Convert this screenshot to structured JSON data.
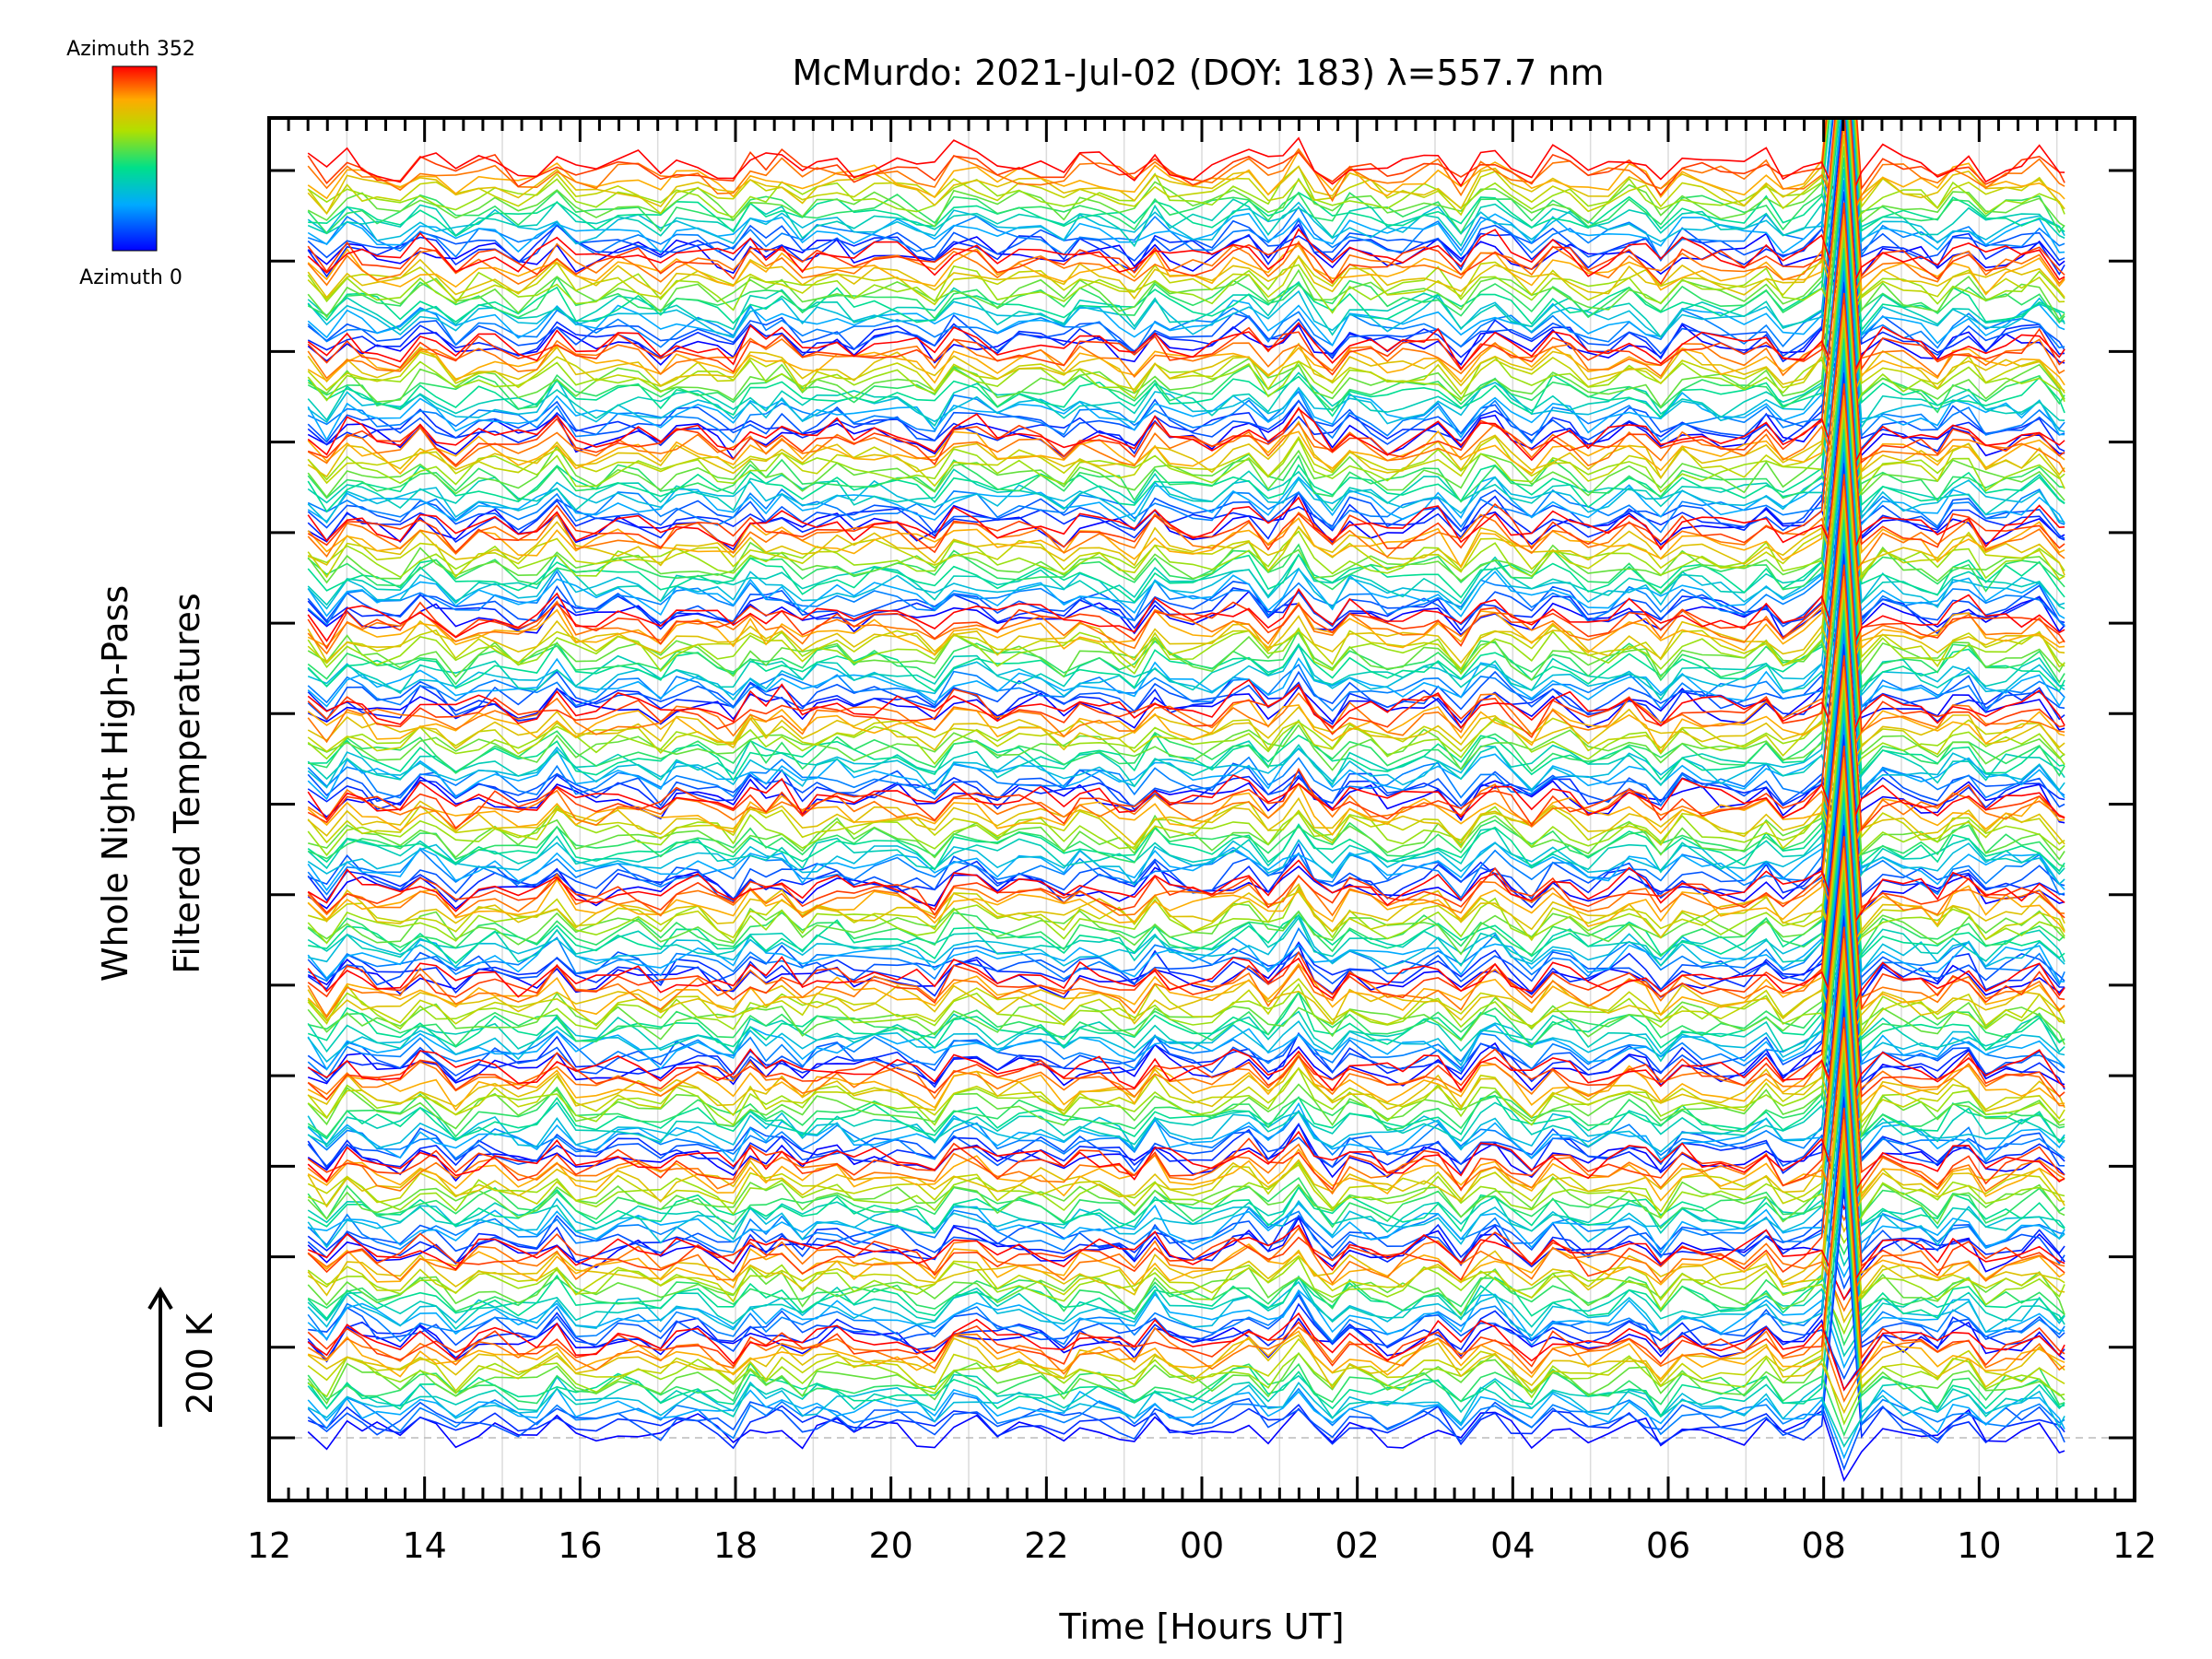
{
  "chart_data": {
    "type": "line",
    "title": "McMurdo: 2021-Jul-02 (DOY: 183) λ=557.7 nm",
    "xlabel": "Time [Hours UT]",
    "ylabel_line1": "Whole Night High-Pass",
    "ylabel_line2": "Filtered Temperatures",
    "scale_annotation": "200 K",
    "colorbar": {
      "top_label": "Azimuth  352",
      "bottom_label": "Azimuth  0",
      "azimuth_min": 0,
      "azimuth_max": 352
    },
    "x_ticks": [
      "12",
      "14",
      "16",
      "18",
      "20",
      "22",
      "00",
      "02",
      "04",
      "06",
      "08",
      "10",
      "12"
    ],
    "x_range_hours": [
      12,
      36
    ],
    "data_start_hour": 12.5,
    "data_end_hour": 35.1,
    "n_offset_levels": 15,
    "series_note_azimuths": [
      0,
      22,
      44,
      66,
      88,
      110,
      132,
      154,
      176,
      198,
      220,
      242,
      264,
      286,
      308,
      330,
      352
    ],
    "grid": true,
    "legend": "colorbar top-left"
  }
}
